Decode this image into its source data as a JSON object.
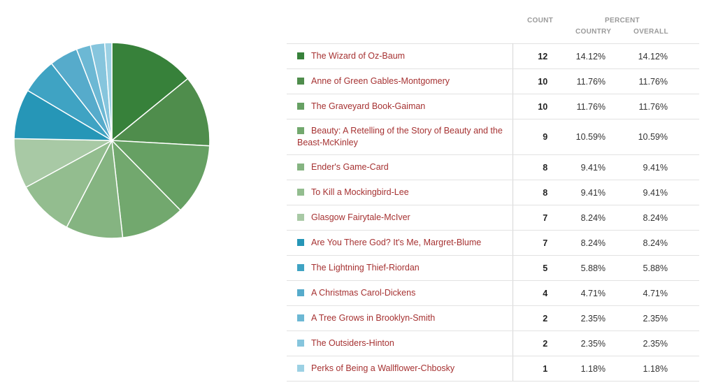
{
  "header": {
    "count": "COUNT",
    "percent": "PERCENT",
    "country": "COUNTRY",
    "overall": "OVERALL"
  },
  "chart_data": {
    "type": "pie",
    "categories": [
      "The Wizard of Oz-Baum",
      "Anne of Green Gables-Montgomery",
      "The Graveyard Book-Gaiman",
      "Beauty: A Retelling of the Story of Beauty and the Beast-McKinley",
      "Ender's Game-Card",
      "To Kill a Mockingbird-Lee",
      "Glasgow Fairytale-McIver",
      "Are You There God? It's Me, Margret-Blume",
      "The Lightning Thief-Riordan",
      "A Christmas Carol-Dickens",
      "A Tree Grows in Brooklyn-Smith",
      "The Outsiders-Hinton",
      "Perks of Being a Wallflower-Chbosky"
    ],
    "values": [
      12,
      10,
      10,
      9,
      8,
      8,
      7,
      7,
      5,
      4,
      2,
      2,
      1
    ],
    "colors": [
      "#37813a",
      "#4f8d4c",
      "#66a063",
      "#72a86e",
      "#85b481",
      "#93bd8f",
      "#a8c9a5",
      "#2696b7",
      "#3fa3c3",
      "#56abcb",
      "#6cb8d4",
      "#86c5dd",
      "#9cd1e4"
    ]
  },
  "table": {
    "rows": [
      {
        "label": "The Wizard of Oz-Baum",
        "count": "12",
        "country": "14.12%",
        "overall": "14.12%"
      },
      {
        "label": "Anne of Green Gables-Montgomery",
        "count": "10",
        "country": "11.76%",
        "overall": "11.76%"
      },
      {
        "label": "The Graveyard Book-Gaiman",
        "count": "10",
        "country": "11.76%",
        "overall": "11.76%"
      },
      {
        "label": "Beauty: A Retelling of the Story of Beauty and the Beast-McKinley",
        "count": "9",
        "country": "10.59%",
        "overall": "10.59%"
      },
      {
        "label": "Ender's Game-Card",
        "count": "8",
        "country": "9.41%",
        "overall": "9.41%"
      },
      {
        "label": "To Kill a Mockingbird-Lee",
        "count": "8",
        "country": "9.41%",
        "overall": "9.41%"
      },
      {
        "label": "Glasgow Fairytale-McIver",
        "count": "7",
        "country": "8.24%",
        "overall": "8.24%"
      },
      {
        "label": "Are You There God? It's Me, Margret-Blume",
        "count": "7",
        "country": "8.24%",
        "overall": "8.24%"
      },
      {
        "label": "The Lightning Thief-Riordan",
        "count": "5",
        "country": "5.88%",
        "overall": "5.88%"
      },
      {
        "label": "A Christmas Carol-Dickens",
        "count": "4",
        "country": "4.71%",
        "overall": "4.71%"
      },
      {
        "label": "A Tree Grows in Brooklyn-Smith",
        "count": "2",
        "country": "2.35%",
        "overall": "2.35%"
      },
      {
        "label": "The Outsiders-Hinton",
        "count": "2",
        "country": "2.35%",
        "overall": "2.35%"
      },
      {
        "label": "Perks of Being a Wallflower-Chbosky",
        "count": "1",
        "country": "1.18%",
        "overall": "1.18%"
      }
    ]
  }
}
